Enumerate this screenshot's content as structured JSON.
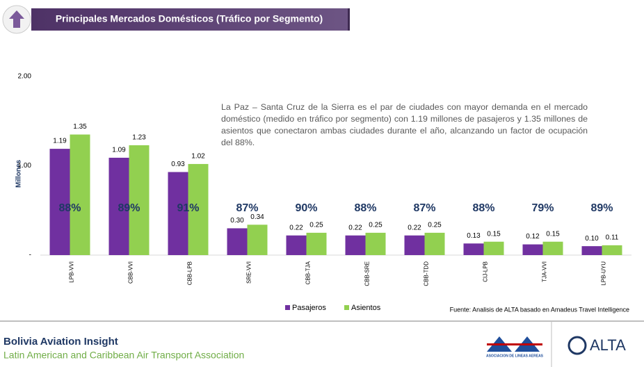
{
  "header": {
    "title": "Principales Mercados Domésticos (Tráfico por Segmento)"
  },
  "chart_data": {
    "type": "bar",
    "ylabel": "Millones",
    "categories": [
      "LPB-VVI",
      "CBB-VVI",
      "CBB-LPB",
      "SRE-VVI",
      "CBB-TJA",
      "CBB-SRE",
      "CBB-TDD",
      "CIJ-LPB",
      "TJA-VVI",
      "LPB-UYU"
    ],
    "series": [
      {
        "name": "Pasajeros",
        "color": "#7030a0",
        "values": [
          1.19,
          1.09,
          0.93,
          0.3,
          0.22,
          0.22,
          0.22,
          0.13,
          0.12,
          0.1
        ],
        "value_labels": [
          "1.19",
          "1.09",
          "0.93",
          "0.30",
          "0.22",
          "0.22",
          "0.22",
          "0.13",
          "0.12",
          "0.10"
        ]
      },
      {
        "name": "Asientos",
        "color": "#92d050",
        "values": [
          1.35,
          1.23,
          1.02,
          0.34,
          0.25,
          0.25,
          0.25,
          0.15,
          0.15,
          0.11
        ],
        "value_labels": [
          "1.35",
          "1.23",
          "1.02",
          "0.34",
          "0.25",
          "0.25",
          "0.25",
          "0.15",
          "0.15",
          "0.11"
        ]
      }
    ],
    "load_factor": {
      "color": "#1f3864",
      "values": [
        88,
        89,
        91,
        87,
        90,
        88,
        87,
        88,
        79,
        89
      ],
      "value_labels": [
        "88%",
        "89%",
        "91%",
        "87%",
        "90%",
        "88%",
        "87%",
        "88%",
        "79%",
        "89%"
      ]
    },
    "ylim": [
      0,
      2
    ],
    "yticks": [
      {
        "value": 0,
        "label": "-"
      },
      {
        "value": 1,
        "label": "1.00"
      },
      {
        "value": 2,
        "label": "2.00"
      }
    ],
    "legend": "bottom",
    "annotation": "La Paz – Santa Cruz de la Sierra es el par de ciudades con mayor demanda en el mercado doméstico (medido en tráfico por segmento) con 1.19 millones de pasajeros y 1.35 millones de asientos que conectaron ambas ciudades durante el año, alcanzando un factor de ocupación del 88%.",
    "source": "Fuente: Analisis de ALTA basado en Amadeus Travel Intelligence"
  },
  "footer": {
    "title": "Bolivia Aviation Insight",
    "subtitle": "Latin American and Caribbean Air Transport Association",
    "logo_caption": "ASOCIACION DE LINEAS AEREAS",
    "logo_text": "ALTA"
  }
}
